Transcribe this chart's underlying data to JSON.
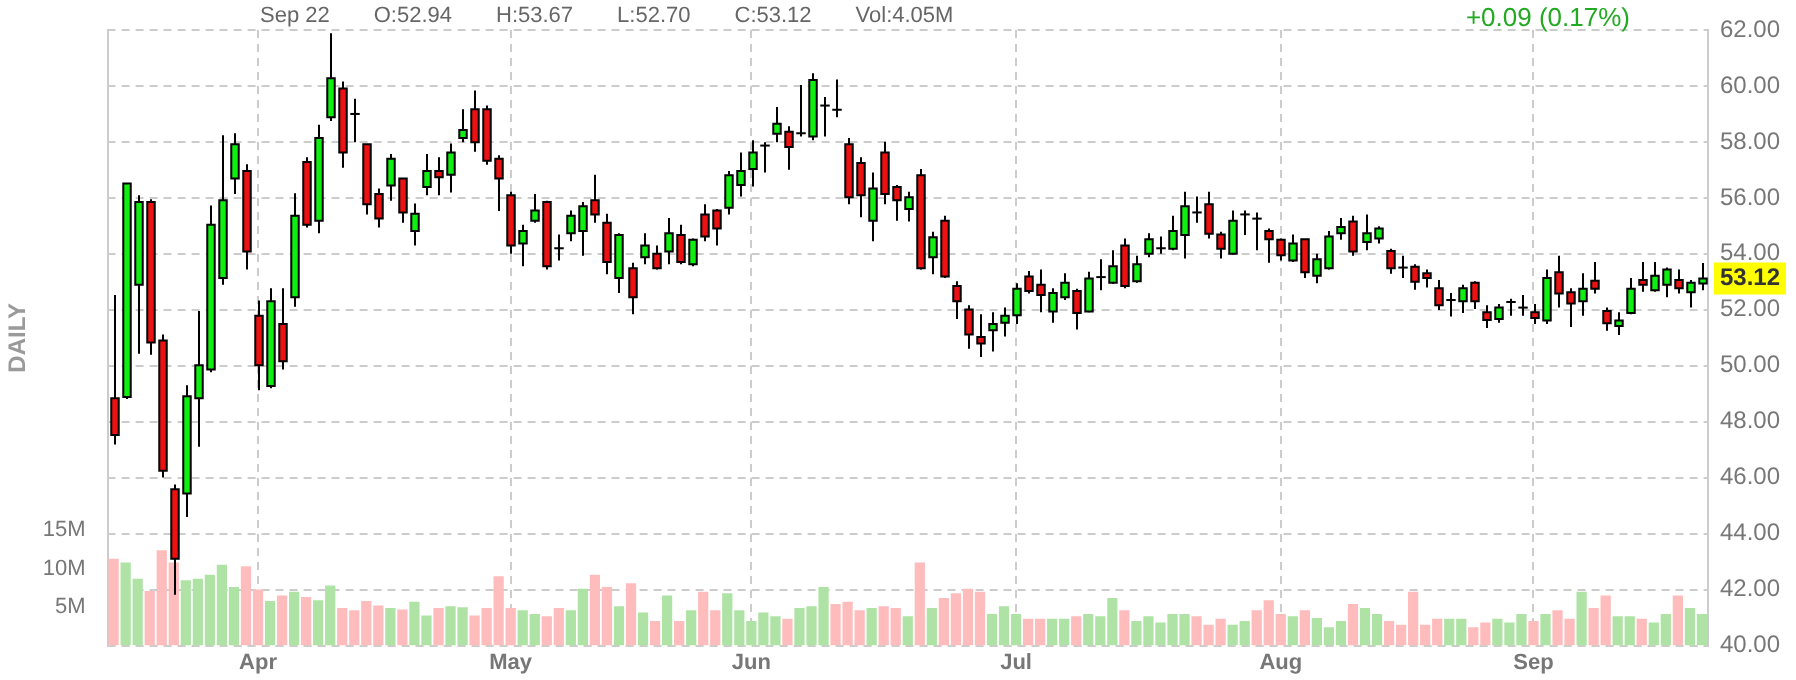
{
  "chart_data": {
    "type": "candlestick",
    "y2label": "DAILY",
    "annotations": [
      "Sep 22",
      "O:52.94",
      "H:53.67",
      "L:52.70",
      "C:53.12",
      "Vol:4.05M",
      "+0.09 (0.17%)",
      "53.12"
    ],
    "categories": [
      null,
      null,
      null,
      null,
      null,
      null,
      null,
      null,
      null,
      null,
      null,
      null,
      "Apr",
      null,
      null,
      null,
      null,
      null,
      null,
      null,
      null,
      null,
      null,
      null,
      null,
      null,
      null,
      null,
      null,
      null,
      null,
      null,
      null,
      "May",
      null,
      null,
      null,
      null,
      null,
      null,
      null,
      null,
      null,
      null,
      null,
      null,
      null,
      null,
      null,
      null,
      null,
      null,
      null,
      "Jun",
      null,
      null,
      null,
      null,
      null,
      null,
      null,
      null,
      null,
      null,
      null,
      null,
      null,
      null,
      null,
      null,
      null,
      null,
      null,
      null,
      null,
      "Jul",
      null,
      null,
      null,
      null,
      null,
      null,
      null,
      null,
      null,
      null,
      null,
      null,
      null,
      null,
      null,
      null,
      null,
      null,
      null,
      null,
      null,
      "Aug",
      null,
      null,
      null,
      null,
      null,
      null,
      null,
      null,
      null,
      null,
      null,
      null,
      null,
      null,
      null,
      null,
      null,
      null,
      null,
      null,
      "Sep",
      null,
      null,
      null,
      null,
      null,
      null,
      null,
      null,
      null,
      null,
      null,
      null,
      null,
      null
    ],
    "ohlc": [
      [
        48.84,
        52.53,
        47.19,
        47.53
      ],
      [
        48.88,
        56.51,
        48.81,
        56.51
      ],
      [
        52.9,
        56.09,
        50.43,
        55.85
      ],
      [
        55.85,
        55.95,
        50.39,
        50.83
      ],
      [
        50.9,
        51.12,
        46.01,
        46.25
      ],
      [
        45.59,
        45.76,
        41.82,
        43.1
      ],
      [
        45.44,
        49.3,
        44.6,
        48.91
      ],
      [
        48.84,
        51.96,
        47.11,
        50.02
      ],
      [
        49.87,
        55.73,
        49.77,
        55.04
      ],
      [
        53.14,
        58.24,
        52.9,
        55.92
      ],
      [
        56.69,
        58.31,
        56.14,
        57.92
      ],
      [
        56.96,
        57.2,
        53.44,
        54.08
      ],
      [
        51.79,
        52.33,
        49.13,
        50.02
      ],
      [
        49.28,
        52.77,
        49.2,
        52.31
      ],
      [
        51.49,
        52.77,
        49.87,
        50.16
      ],
      [
        52.45,
        56.17,
        52.11,
        55.36
      ],
      [
        57.28,
        57.45,
        54.94,
        55.04
      ],
      [
        55.18,
        58.61,
        54.74,
        58.14
      ],
      [
        58.88,
        61.88,
        58.75,
        60.28
      ],
      [
        59.91,
        60.16,
        57.08,
        57.62
      ],
      [
        59.0,
        59.54,
        57.99,
        59.0
      ],
      [
        57.92,
        57.92,
        55.41,
        55.77
      ],
      [
        56.14,
        56.34,
        54.94,
        55.26
      ],
      [
        56.44,
        57.57,
        55.9,
        57.4
      ],
      [
        56.69,
        56.69,
        55.11,
        55.48
      ],
      [
        54.82,
        55.8,
        54.3,
        55.43
      ],
      [
        56.39,
        57.57,
        56.09,
        56.96
      ],
      [
        56.96,
        57.45,
        56.09,
        56.74
      ],
      [
        56.83,
        57.94,
        56.19,
        57.62
      ],
      [
        58.14,
        59.17,
        57.99,
        58.43
      ],
      [
        59.17,
        59.84,
        57.65,
        57.99
      ],
      [
        59.17,
        59.3,
        57.18,
        57.33
      ],
      [
        57.4,
        57.52,
        55.53,
        56.69
      ],
      [
        56.09,
        56.22,
        54.0,
        54.3
      ],
      [
        54.37,
        55.04,
        53.56,
        54.82
      ],
      [
        55.18,
        56.14,
        55.11,
        55.55
      ],
      [
        55.85,
        55.9,
        53.44,
        53.56
      ],
      [
        54.2,
        54.69,
        53.76,
        54.2
      ],
      [
        54.74,
        55.55,
        54.45,
        55.36
      ],
      [
        54.82,
        55.85,
        53.93,
        55.7
      ],
      [
        55.92,
        56.83,
        55.11,
        55.41
      ],
      [
        55.11,
        55.43,
        53.27,
        53.71
      ],
      [
        53.14,
        54.74,
        52.6,
        54.67
      ],
      [
        53.49,
        53.68,
        51.84,
        52.45
      ],
      [
        53.88,
        54.74,
        53.63,
        54.3
      ],
      [
        54.0,
        54.3,
        53.44,
        53.49
      ],
      [
        54.08,
        55.28,
        53.63,
        54.74
      ],
      [
        54.67,
        55.04,
        53.63,
        53.71
      ],
      [
        53.63,
        54.55,
        53.56,
        54.5
      ],
      [
        55.41,
        55.77,
        54.45,
        54.62
      ],
      [
        55.55,
        55.6,
        54.3,
        54.91
      ],
      [
        55.65,
        56.96,
        55.41,
        56.81
      ],
      [
        56.46,
        57.62,
        56.05,
        56.96
      ],
      [
        57.03,
        58.06,
        56.41,
        57.62
      ],
      [
        57.87,
        57.99,
        56.91,
        57.87
      ],
      [
        58.29,
        59.25,
        57.99,
        58.65
      ],
      [
        58.36,
        58.56,
        57.01,
        57.82
      ],
      [
        58.31,
        60.03,
        58.19,
        58.31
      ],
      [
        58.19,
        60.45,
        58.06,
        60.21
      ],
      [
        59.3,
        59.61,
        58.19,
        59.3
      ],
      [
        59.15,
        60.23,
        58.88,
        59.15
      ],
      [
        57.92,
        58.14,
        55.77,
        56.02
      ],
      [
        57.25,
        57.45,
        55.31,
        56.09
      ],
      [
        55.18,
        56.91,
        54.45,
        56.34
      ],
      [
        57.62,
        58.01,
        55.77,
        56.14
      ],
      [
        56.39,
        56.46,
        55.18,
        55.92
      ],
      [
        55.6,
        56.22,
        55.16,
        56.02
      ],
      [
        56.81,
        57.03,
        53.44,
        53.49
      ],
      [
        53.88,
        54.79,
        53.27,
        54.59
      ],
      [
        55.18,
        55.36,
        53.14,
        53.19
      ],
      [
        52.85,
        53.02,
        51.67,
        52.31
      ],
      [
        52.01,
        52.16,
        50.61,
        51.12
      ],
      [
        51.03,
        51.84,
        50.31,
        50.8
      ],
      [
        51.27,
        51.91,
        50.51,
        51.49
      ],
      [
        51.54,
        52.08,
        51.05,
        51.79
      ],
      [
        51.81,
        52.95,
        51.49,
        52.75
      ],
      [
        53.19,
        53.39,
        52.58,
        52.67
      ],
      [
        52.9,
        53.44,
        51.91,
        52.53
      ],
      [
        51.94,
        52.77,
        51.54,
        52.6
      ],
      [
        52.45,
        53.31,
        52.35,
        52.97
      ],
      [
        52.67,
        52.75,
        51.3,
        51.89
      ],
      [
        51.94,
        53.36,
        51.91,
        53.12
      ],
      [
        53.17,
        53.81,
        52.7,
        53.17
      ],
      [
        52.97,
        54.13,
        52.92,
        53.56
      ],
      [
        54.3,
        54.55,
        52.77,
        52.85
      ],
      [
        53.02,
        53.93,
        52.97,
        53.63
      ],
      [
        54.0,
        54.74,
        53.88,
        54.52
      ],
      [
        54.2,
        54.62,
        54.0,
        54.2
      ],
      [
        54.18,
        55.36,
        54.13,
        54.82
      ],
      [
        54.67,
        56.22,
        53.83,
        55.7
      ],
      [
        55.48,
        56.05,
        55.11,
        55.48
      ],
      [
        55.77,
        56.22,
        54.55,
        54.72
      ],
      [
        54.69,
        54.79,
        53.83,
        54.18
      ],
      [
        54.0,
        55.55,
        53.98,
        55.18
      ],
      [
        55.41,
        55.55,
        54.67,
        55.41
      ],
      [
        55.26,
        55.48,
        54.13,
        55.26
      ],
      [
        54.82,
        54.91,
        53.68,
        54.52
      ],
      [
        54.5,
        54.55,
        53.76,
        53.95
      ],
      [
        53.76,
        54.69,
        53.71,
        54.37
      ],
      [
        54.52,
        54.52,
        53.14,
        53.34
      ],
      [
        53.22,
        54.0,
        52.95,
        53.81
      ],
      [
        53.49,
        54.82,
        53.44,
        54.62
      ],
      [
        54.74,
        55.28,
        54.5,
        54.96
      ],
      [
        55.16,
        55.36,
        53.93,
        54.08
      ],
      [
        54.42,
        55.41,
        54.13,
        54.74
      ],
      [
        54.55,
        54.99,
        54.37,
        54.91
      ],
      [
        54.1,
        54.18,
        53.29,
        53.49
      ],
      [
        53.51,
        53.93,
        53.14,
        53.51
      ],
      [
        53.54,
        53.63,
        52.72,
        53.0
      ],
      [
        53.31,
        53.44,
        52.8,
        53.14
      ],
      [
        52.77,
        53.07,
        51.99,
        52.16
      ],
      [
        52.35,
        52.6,
        51.76,
        52.35
      ],
      [
        52.31,
        52.9,
        51.89,
        52.77
      ],
      [
        52.97,
        53.02,
        52.03,
        52.31
      ],
      [
        51.91,
        52.16,
        51.35,
        51.64
      ],
      [
        51.67,
        52.21,
        51.54,
        52.08
      ],
      [
        52.28,
        52.4,
        51.79,
        52.28
      ],
      [
        52.08,
        52.53,
        51.79,
        52.08
      ],
      [
        51.91,
        52.21,
        51.49,
        51.71
      ],
      [
        51.62,
        53.44,
        51.49,
        53.14
      ],
      [
        53.34,
        53.93,
        52.08,
        52.58
      ],
      [
        52.63,
        52.77,
        51.39,
        52.23
      ],
      [
        52.31,
        53.31,
        51.79,
        52.75
      ],
      [
        53.04,
        53.71,
        52.58,
        52.75
      ],
      [
        51.96,
        52.08,
        51.25,
        51.52
      ],
      [
        51.42,
        51.91,
        51.1,
        51.62
      ],
      [
        51.89,
        53.14,
        51.84,
        52.75
      ],
      [
        53.07,
        53.71,
        52.65,
        52.9
      ],
      [
        52.7,
        53.71,
        52.65,
        53.22
      ],
      [
        52.9,
        53.51,
        52.45,
        53.44
      ],
      [
        53.07,
        53.44,
        52.58,
        52.77
      ],
      [
        52.63,
        53.07,
        52.08,
        52.97
      ],
      [
        52.94,
        53.67,
        52.7,
        53.12
      ]
    ],
    "colors": [
      "#ee1111",
      "#11ee11",
      "#11ee11",
      "#ee1111",
      "#ee1111",
      "#ee1111",
      "#11ee11",
      "#11ee11",
      "#11ee11",
      "#11ee11",
      "#11ee11",
      "#ee1111",
      "#ee1111",
      "#11ee11",
      "#ee1111",
      "#11ee11",
      "#ee1111",
      "#11ee11",
      "#11ee11",
      "#ee1111",
      "#ee1111",
      "#ee1111",
      "#ee1111",
      "#11ee11",
      "#ee1111",
      "#11ee11",
      "#11ee11",
      "#ee1111",
      "#11ee11",
      "#11ee11",
      "#ee1111",
      "#ee1111",
      "#ee1111",
      "#ee1111",
      "#11ee11",
      "#11ee11",
      "#ee1111",
      "#ee1111",
      "#11ee11",
      "#11ee11",
      "#ee1111",
      "#ee1111",
      "#11ee11",
      "#ee1111",
      "#11ee11",
      "#ee1111",
      "#11ee11",
      "#ee1111",
      "#11ee11",
      "#ee1111",
      "#ee1111",
      "#11ee11",
      "#11ee11",
      "#11ee11",
      "#11ee11",
      "#11ee11",
      "#ee1111",
      "#11ee11",
      "#11ee11",
      "#11ee11",
      "#ee1111",
      "#ee1111",
      "#ee1111",
      "#11ee11",
      "#ee1111",
      "#ee1111",
      "#11ee11",
      "#ee1111",
      "#11ee11",
      "#ee1111",
      "#ee1111",
      "#ee1111",
      "#ee1111",
      "#11ee11",
      "#11ee11",
      "#11ee11",
      "#ee1111",
      "#ee1111",
      "#11ee11",
      "#11ee11",
      "#ee1111",
      "#11ee11",
      "#11ee11",
      "#11ee11",
      "#ee1111",
      "#11ee11",
      "#11ee11",
      "#11ee11",
      "#11ee11",
      "#11ee11",
      "#ee1111",
      "#ee1111",
      "#ee1111",
      "#11ee11",
      "#11ee11",
      "#ee1111",
      "#ee1111",
      "#ee1111",
      "#11ee11",
      "#ee1111",
      "#11ee11",
      "#11ee11",
      "#11ee11",
      "#ee1111",
      "#11ee11",
      "#11ee11",
      "#ee1111",
      "#ee1111",
      "#ee1111",
      "#ee1111",
      "#ee1111",
      "#11ee11",
      "#11ee11",
      "#ee1111",
      "#ee1111",
      "#11ee11",
      "#11ee11",
      "#11ee11",
      "#ee1111",
      "#11ee11",
      "#ee1111",
      "#ee1111",
      "#11ee11",
      "#ee1111",
      "#ee1111",
      "#11ee11",
      "#11ee11",
      "#ee1111",
      "#11ee11",
      "#11ee11",
      "#ee1111",
      "#11ee11",
      "#11ee11"
    ],
    "series": [
      {
        "type": "bar",
        "axis": "y2",
        "values": [
          11.3,
          10.8,
          8.7,
          7.1,
          12.4,
          10.8,
          8.5,
          8.7,
          9.2,
          10.5,
          7.6,
          10.3,
          7.3,
          5.8,
          6.5,
          7.0,
          6.3,
          5.9,
          7.8,
          4.9,
          4.6,
          5.8,
          5.2,
          4.9,
          4.7,
          5.7,
          3.9,
          4.9,
          5.1,
          5.0,
          3.9,
          4.9,
          9.0,
          4.9,
          4.6,
          4.1,
          3.8,
          4.9,
          4.6,
          7.4,
          9.2,
          7.6,
          5.1,
          8.1,
          4.3,
          3.2,
          6.5,
          3.2,
          4.6,
          7.0,
          4.6,
          6.8,
          4.6,
          3.2,
          4.3,
          3.8,
          3.5,
          4.9,
          5.1,
          7.6,
          5.4,
          5.7,
          4.6,
          4.9,
          5.1,
          4.9,
          3.8,
          10.8,
          4.9,
          6.2,
          6.8,
          7.4,
          7.0,
          4.1,
          5.1,
          4.1,
          3.5,
          3.5,
          3.5,
          3.5,
          3.8,
          4.1,
          3.8,
          6.2,
          4.6,
          3.2,
          3.8,
          3.0,
          4.1,
          4.1,
          3.8,
          2.7,
          3.5,
          2.7,
          3.2,
          4.6,
          5.9,
          4.1,
          3.8,
          4.6,
          3.6,
          2.4,
          3.2,
          5.4,
          4.9,
          4.1,
          3.2,
          2.7,
          7.0,
          2.7,
          3.5,
          3.5,
          3.5,
          2.4,
          3.0,
          3.5,
          3.0,
          4.1,
          3.2,
          4.1,
          4.6,
          3.5,
          7.0,
          4.9,
          6.5,
          3.8,
          3.8,
          3.5,
          3.0,
          4.1,
          6.5,
          4.9,
          4.1
        ],
        "colors": [
          "#ffbcbc",
          "#aee3a5",
          "#aee3a5",
          "#ffbcbc",
          "#ffbcbc",
          "#ffbcbc",
          "#aee3a5",
          "#aee3a5",
          "#aee3a5",
          "#aee3a5",
          "#aee3a5",
          "#ffbcbc",
          "#ffbcbc",
          "#aee3a5",
          "#ffbcbc",
          "#aee3a5",
          "#ffbcbc",
          "#aee3a5",
          "#aee3a5",
          "#ffbcbc",
          "#ffbcbc",
          "#ffbcbc",
          "#ffbcbc",
          "#aee3a5",
          "#ffbcbc",
          "#aee3a5",
          "#aee3a5",
          "#ffbcbc",
          "#aee3a5",
          "#aee3a5",
          "#ffbcbc",
          "#ffbcbc",
          "#ffbcbc",
          "#ffbcbc",
          "#aee3a5",
          "#aee3a5",
          "#ffbcbc",
          "#ffbcbc",
          "#aee3a5",
          "#aee3a5",
          "#ffbcbc",
          "#ffbcbc",
          "#aee3a5",
          "#ffbcbc",
          "#aee3a5",
          "#ffbcbc",
          "#aee3a5",
          "#ffbcbc",
          "#aee3a5",
          "#ffbcbc",
          "#ffbcbc",
          "#aee3a5",
          "#aee3a5",
          "#aee3a5",
          "#aee3a5",
          "#aee3a5",
          "#ffbcbc",
          "#aee3a5",
          "#aee3a5",
          "#aee3a5",
          "#ffbcbc",
          "#ffbcbc",
          "#ffbcbc",
          "#aee3a5",
          "#ffbcbc",
          "#ffbcbc",
          "#aee3a5",
          "#ffbcbc",
          "#aee3a5",
          "#ffbcbc",
          "#ffbcbc",
          "#ffbcbc",
          "#ffbcbc",
          "#aee3a5",
          "#aee3a5",
          "#aee3a5",
          "#ffbcbc",
          "#ffbcbc",
          "#aee3a5",
          "#aee3a5",
          "#ffbcbc",
          "#aee3a5",
          "#aee3a5",
          "#aee3a5",
          "#ffbcbc",
          "#aee3a5",
          "#aee3a5",
          "#aee3a5",
          "#aee3a5",
          "#aee3a5",
          "#ffbcbc",
          "#ffbcbc",
          "#ffbcbc",
          "#aee3a5",
          "#aee3a5",
          "#ffbcbc",
          "#ffbcbc",
          "#ffbcbc",
          "#aee3a5",
          "#ffbcbc",
          "#aee3a5",
          "#aee3a5",
          "#aee3a5",
          "#ffbcbc",
          "#aee3a5",
          "#aee3a5",
          "#ffbcbc",
          "#ffbcbc",
          "#ffbcbc",
          "#ffbcbc",
          "#ffbcbc",
          "#aee3a5",
          "#aee3a5",
          "#ffbcbc",
          "#ffbcbc",
          "#aee3a5",
          "#aee3a5",
          "#aee3a5",
          "#ffbcbc",
          "#aee3a5",
          "#ffbcbc",
          "#ffbcbc",
          "#aee3a5",
          "#ffbcbc",
          "#ffbcbc",
          "#aee3a5",
          "#aee3a5",
          "#ffbcbc",
          "#aee3a5",
          "#aee3a5",
          "#ffbcbc",
          "#aee3a5",
          "#aee3a5"
        ]
      }
    ],
    "ylim": [
      40,
      62
    ],
    "yticks": [
      {
        "value": 40,
        "label": "40.00"
      },
      {
        "value": 42,
        "label": "42.00"
      },
      {
        "value": 44,
        "label": "44.00"
      },
      {
        "value": 46,
        "label": "46.00"
      },
      {
        "value": 48,
        "label": "48.00"
      },
      {
        "value": 50,
        "label": "50.00"
      },
      {
        "value": 52,
        "label": "52.00"
      },
      {
        "value": 54,
        "label": "54.00"
      },
      {
        "value": 56,
        "label": "56.00"
      },
      {
        "value": 58,
        "label": "58.00"
      },
      {
        "value": 60,
        "label": "60.00"
      },
      {
        "value": 62,
        "label": "62.00"
      }
    ],
    "y2lim": [
      0,
      80
    ],
    "y2ticks": [
      {
        "value": 5,
        "label": "5M"
      },
      {
        "value": 10,
        "label": "10M"
      },
      {
        "value": 15,
        "label": "15M"
      }
    ],
    "grid": true
  }
}
